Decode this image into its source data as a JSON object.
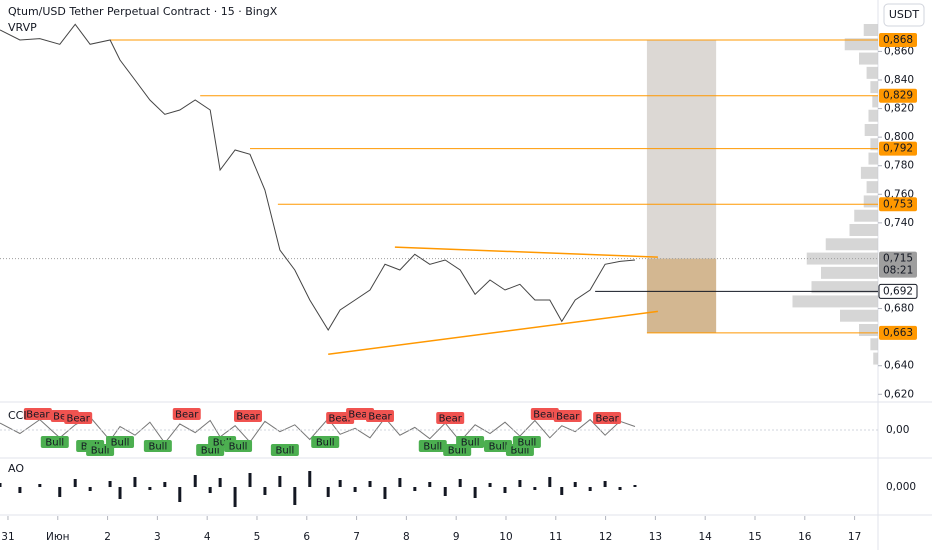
{
  "chart_data": {
    "type": "line",
    "title": "Qtum/USD Tether Perpetual Contract · 15 · BingX",
    "indicator": "VRVP",
    "currency": "USDT",
    "color": "#444444",
    "grid": false,
    "xlim": [
      -0.16,
      17.47
    ],
    "ylim": [
      0.616,
      0.896
    ],
    "xticks": [
      {
        "value": 0,
        "label": "31"
      },
      {
        "value": 1,
        "label": "Июн"
      },
      2,
      3,
      4,
      5,
      6,
      7,
      8,
      9,
      10,
      11,
      12,
      13,
      14,
      15,
      16,
      17
    ],
    "yticks": [
      {
        "value": 0.62,
        "label": "0,620"
      },
      {
        "value": 0.64,
        "label": "0,640"
      },
      {
        "value": 0.68,
        "label": "0,680"
      },
      {
        "value": 0.74,
        "label": "0,740"
      },
      {
        "value": 0.76,
        "label": "0,760"
      },
      {
        "value": 0.78,
        "label": "0,780"
      },
      {
        "value": 0.8,
        "label": "0,800"
      },
      {
        "value": 0.82,
        "label": "0,820"
      },
      {
        "value": 0.84,
        "label": "0,840"
      },
      {
        "value": 0.86,
        "label": "0,860"
      }
    ],
    "x": [
      -0.16,
      0.24,
      0.64,
      1.04,
      1.35,
      1.65,
      2.05,
      2.25,
      2.55,
      2.85,
      3.15,
      3.45,
      3.76,
      4.06,
      4.26,
      4.56,
      4.86,
      5.16,
      5.46,
      5.76,
      6.06,
      6.43,
      6.67,
      6.97,
      7.27,
      7.57,
      7.87,
      8.17,
      8.47,
      8.78,
      9.08,
      9.38,
      9.68,
      9.98,
      10.28,
      10.58,
      10.88,
      11.12,
      11.39,
      11.69,
      11.99,
      12.29,
      12.59
    ],
    "values": [
      0.875,
      0.868,
      0.869,
      0.865,
      0.879,
      0.865,
      0.868,
      0.854,
      0.84,
      0.826,
      0.816,
      0.819,
      0.826,
      0.819,
      0.777,
      0.791,
      0.788,
      0.763,
      0.721,
      0.707,
      0.686,
      0.665,
      0.679,
      0.686,
      0.693,
      0.711,
      0.707,
      0.718,
      0.711,
      0.714,
      0.707,
      0.69,
      0.7,
      0.693,
      0.697,
      0.686,
      0.686,
      0.671,
      0.686,
      0.693,
      0.711,
      0.713,
      0.714
    ],
    "level_color": "#ff9800",
    "levels": [
      {
        "value": 0.868,
        "label": "0,868",
        "x": 2.05
      },
      {
        "value": 0.829,
        "label": "0,829",
        "x": 3.86
      },
      {
        "value": 0.792,
        "label": "0,792",
        "x": 4.86
      },
      {
        "value": 0.753,
        "label": "0,753",
        "x": 5.42
      },
      {
        "value": 0.663,
        "label": "0,663",
        "x": 12.83
      }
    ],
    "mark_line": {
      "value": 0.692,
      "label": "0,692",
      "x": 11.79,
      "color": "#131722"
    },
    "last_price": {
      "value": 0.715,
      "label": "0,715",
      "countdown": "08:21",
      "color": "#9e9e9e"
    },
    "trendlines": [
      {
        "x": [
          7.77,
          13.05
        ],
        "values": [
          0.723,
          0.716
        ],
        "color": "#ff9800"
      },
      {
        "x": [
          6.43,
          13.05
        ],
        "values": [
          0.648,
          0.678
        ],
        "color": "#ff9800"
      }
    ],
    "position": {
      "x": [
        12.83,
        14.22
      ],
      "target": 0.868,
      "entry": 0.715,
      "stop": 0.663,
      "target_color": "#dcd8d4",
      "stop_color": "#d3b791"
    },
    "volume_profile": {
      "color": "#c4c4c4",
      "prices": [
        0.645,
        0.655,
        0.665,
        0.675,
        0.685,
        0.695,
        0.705,
        0.715,
        0.725,
        0.735,
        0.745,
        0.755,
        0.765,
        0.775,
        0.785,
        0.795,
        0.805,
        0.815,
        0.825,
        0.835,
        0.845,
        0.855,
        0.865,
        0.875
      ],
      "values": [
        5,
        8,
        20,
        40,
        90,
        70,
        60,
        75,
        55,
        30,
        25,
        15,
        12,
        18,
        10,
        8,
        14,
        10,
        6,
        8,
        12,
        20,
        35,
        15
      ]
    },
    "cci": {
      "label": "CCI",
      "color": "#777777",
      "ylim": [
        -300,
        300
      ],
      "yticks": [
        {
          "value": 0,
          "label": "0,00"
        }
      ],
      "values": [
        80,
        -40,
        120,
        -90,
        60,
        150,
        -120,
        40,
        -60,
        90,
        -150,
        70,
        -30,
        110,
        -80,
        50,
        -140,
        100,
        -20,
        60,
        -110,
        130,
        -50,
        20,
        -90,
        140,
        -60,
        30,
        -100,
        80,
        -130,
        60,
        -40,
        90,
        -70,
        110,
        -90,
        50,
        -20,
        120,
        -60,
        100,
        40
      ]
    },
    "signals": {
      "bear_color": "#f05350",
      "bull_color": "#4caf50",
      "bear": [
        {
          "x": 0.6,
          "label": "Bear"
        },
        {
          "x": 1.14,
          "label": "Bear"
        },
        {
          "x": 1.41,
          "label": "Bear"
        },
        {
          "x": 3.59,
          "label": "Bear"
        },
        {
          "x": 4.82,
          "label": "Bear"
        },
        {
          "x": 6.67,
          "label": "Bear"
        },
        {
          "x": 7.07,
          "label": "Bear"
        },
        {
          "x": 7.47,
          "label": "Bear"
        },
        {
          "x": 8.88,
          "label": "Bear"
        },
        {
          "x": 10.78,
          "label": "Bear"
        },
        {
          "x": 11.24,
          "label": "Bear"
        },
        {
          "x": 12.03,
          "label": "Bear"
        }
      ],
      "bull": [
        {
          "x": 0.94,
          "label": "Bull"
        },
        {
          "x": 1.65,
          "label": "Bull"
        },
        {
          "x": 1.85,
          "label": "Bull"
        },
        {
          "x": 2.25,
          "label": "Bull"
        },
        {
          "x": 3.01,
          "label": "Bull"
        },
        {
          "x": 4.06,
          "label": "Bull"
        },
        {
          "x": 4.3,
          "label": "Bull"
        },
        {
          "x": 4.62,
          "label": "Bull"
        },
        {
          "x": 5.56,
          "label": "Bull"
        },
        {
          "x": 6.37,
          "label": "Bull"
        },
        {
          "x": 8.53,
          "label": "Bull"
        },
        {
          "x": 9.02,
          "label": "Bull"
        },
        {
          "x": 9.28,
          "label": "Bull"
        },
        {
          "x": 9.84,
          "label": "Bull"
        },
        {
          "x": 10.28,
          "label": "Bull"
        },
        {
          "x": 10.42,
          "label": "Bull"
        }
      ]
    },
    "ao": {
      "label": "AO",
      "color": "#131722",
      "ylim": [
        -0.025,
        0.025
      ],
      "yticks": [
        {
          "value": 0,
          "label": "0,000"
        }
      ],
      "values": [
        0.004,
        -0.006,
        0.003,
        -0.01,
        0.008,
        -0.004,
        0.006,
        -0.012,
        0.01,
        -0.003,
        0.005,
        -0.015,
        0.012,
        -0.006,
        0.009,
        -0.02,
        0.014,
        -0.008,
        0.011,
        -0.018,
        0.016,
        -0.01,
        0.007,
        -0.005,
        0.006,
        -0.012,
        0.009,
        -0.004,
        0.005,
        -0.009,
        0.008,
        -0.011,
        0.004,
        -0.006,
        0.007,
        -0.003,
        0.01,
        -0.008,
        0.005,
        -0.004,
        0.006,
        -0.003,
        0.002
      ]
    }
  }
}
